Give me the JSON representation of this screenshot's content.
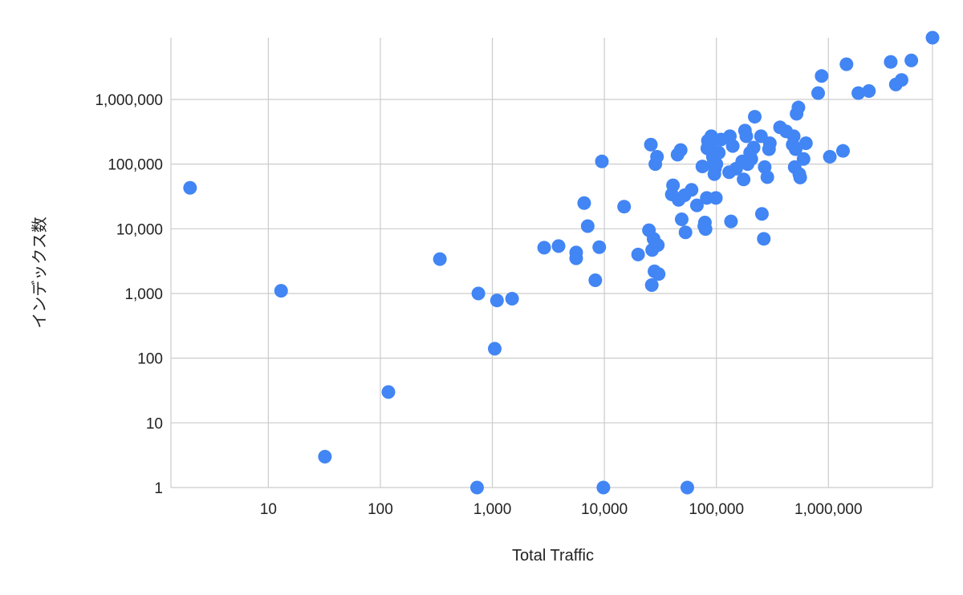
{
  "chart_data": {
    "type": "scatter",
    "title": "",
    "xlabel": "Total Traffic",
    "ylabel": "インデックス数",
    "x_scale": "log",
    "y_scale": "log",
    "xlim": [
      1.35,
      8500000
    ],
    "ylim": [
      1,
      9000000
    ],
    "x_ticks": [
      {
        "value": 10,
        "label": "10"
      },
      {
        "value": 100,
        "label": "100"
      },
      {
        "value": 1000,
        "label": "1,000"
      },
      {
        "value": 10000,
        "label": "10,000"
      },
      {
        "value": 100000,
        "label": "100,000"
      },
      {
        "value": 1000000,
        "label": "1,000,000"
      }
    ],
    "y_ticks": [
      {
        "value": 1,
        "label": "1"
      },
      {
        "value": 10,
        "label": "10"
      },
      {
        "value": 100,
        "label": "100"
      },
      {
        "value": 1000,
        "label": "1,000"
      },
      {
        "value": 10000,
        "label": "10,000"
      },
      {
        "value": 100000,
        "label": "100,000"
      },
      {
        "value": 1000000,
        "label": "1,000,000"
      }
    ],
    "grid": true,
    "legend": "none",
    "point_color": "#4285F4",
    "grid_color": "#cccccc",
    "series": [
      {
        "points": [
          [
            2,
            43000
          ],
          [
            13,
            1100
          ],
          [
            32,
            3
          ],
          [
            118,
            30
          ],
          [
            340,
            3400
          ],
          [
            750,
            1000
          ],
          [
            730,
            1
          ],
          [
            1050,
            140
          ],
          [
            1100,
            780
          ],
          [
            1500,
            830
          ],
          [
            2900,
            5100
          ],
          [
            3900,
            5400
          ],
          [
            5600,
            4300
          ],
          [
            5600,
            3500
          ],
          [
            6600,
            25000
          ],
          [
            7100,
            11000
          ],
          [
            8300,
            1600
          ],
          [
            9000,
            5200
          ],
          [
            9500,
            110000
          ],
          [
            9800,
            1
          ],
          [
            15000,
            22000
          ],
          [
            20000,
            4000
          ],
          [
            25000,
            9500
          ],
          [
            26000,
            200000
          ],
          [
            26500,
            1350
          ],
          [
            26700,
            4700
          ],
          [
            27500,
            7000
          ],
          [
            28000,
            2200
          ],
          [
            28500,
            100000
          ],
          [
            29500,
            130000
          ],
          [
            30000,
            5600
          ],
          [
            30500,
            2000
          ],
          [
            40000,
            34000
          ],
          [
            41000,
            47000
          ],
          [
            45000,
            140000
          ],
          [
            46000,
            28000
          ],
          [
            48000,
            165000
          ],
          [
            49000,
            14000
          ],
          [
            52000,
            33000
          ],
          [
            53000,
            8800
          ],
          [
            55000,
            1
          ],
          [
            60000,
            40000
          ],
          [
            67000,
            23000
          ],
          [
            75000,
            92000
          ],
          [
            78000,
            11000
          ],
          [
            79000,
            12500
          ],
          [
            80000,
            9900
          ],
          [
            82000,
            30000
          ],
          [
            83000,
            175000
          ],
          [
            84000,
            230000
          ],
          [
            90000,
            270000
          ],
          [
            92000,
            220000
          ],
          [
            93000,
            130000
          ],
          [
            94000,
            160000
          ],
          [
            95000,
            110000
          ],
          [
            96000,
            70000
          ],
          [
            97000,
            85000
          ],
          [
            99000,
            30000
          ],
          [
            100000,
            100000
          ],
          [
            105000,
            150000
          ],
          [
            110000,
            240000
          ],
          [
            130000,
            75000
          ],
          [
            132000,
            270000
          ],
          [
            135000,
            13000
          ],
          [
            140000,
            190000
          ],
          [
            150000,
            85000
          ],
          [
            170000,
            110000
          ],
          [
            175000,
            58000
          ],
          [
            180000,
            330000
          ],
          [
            185000,
            270000
          ],
          [
            190000,
            100000
          ],
          [
            200000,
            150000
          ],
          [
            205000,
            120000
          ],
          [
            215000,
            180000
          ],
          [
            220000,
            540000
          ],
          [
            250000,
            270000
          ],
          [
            255000,
            17000
          ],
          [
            265000,
            7000
          ],
          [
            270000,
            90000
          ],
          [
            285000,
            63000
          ],
          [
            295000,
            170000
          ],
          [
            300000,
            210000
          ],
          [
            370000,
            370000
          ],
          [
            420000,
            320000
          ],
          [
            480000,
            200000
          ],
          [
            490000,
            270000
          ],
          [
            500000,
            90000
          ],
          [
            510000,
            170000
          ],
          [
            520000,
            600000
          ],
          [
            540000,
            750000
          ],
          [
            550000,
            70000
          ],
          [
            560000,
            62000
          ],
          [
            600000,
            120000
          ],
          [
            630000,
            210000
          ],
          [
            810000,
            1250000
          ],
          [
            870000,
            2300000
          ],
          [
            1030000,
            130000
          ],
          [
            1350000,
            160000
          ],
          [
            1450000,
            3500000
          ],
          [
            1850000,
            1250000
          ],
          [
            2300000,
            1350000
          ],
          [
            3600000,
            3800000
          ],
          [
            4000000,
            1700000
          ],
          [
            4500000,
            2000000
          ],
          [
            5500000,
            4000000
          ],
          [
            8500000,
            9000000
          ]
        ]
      }
    ]
  }
}
